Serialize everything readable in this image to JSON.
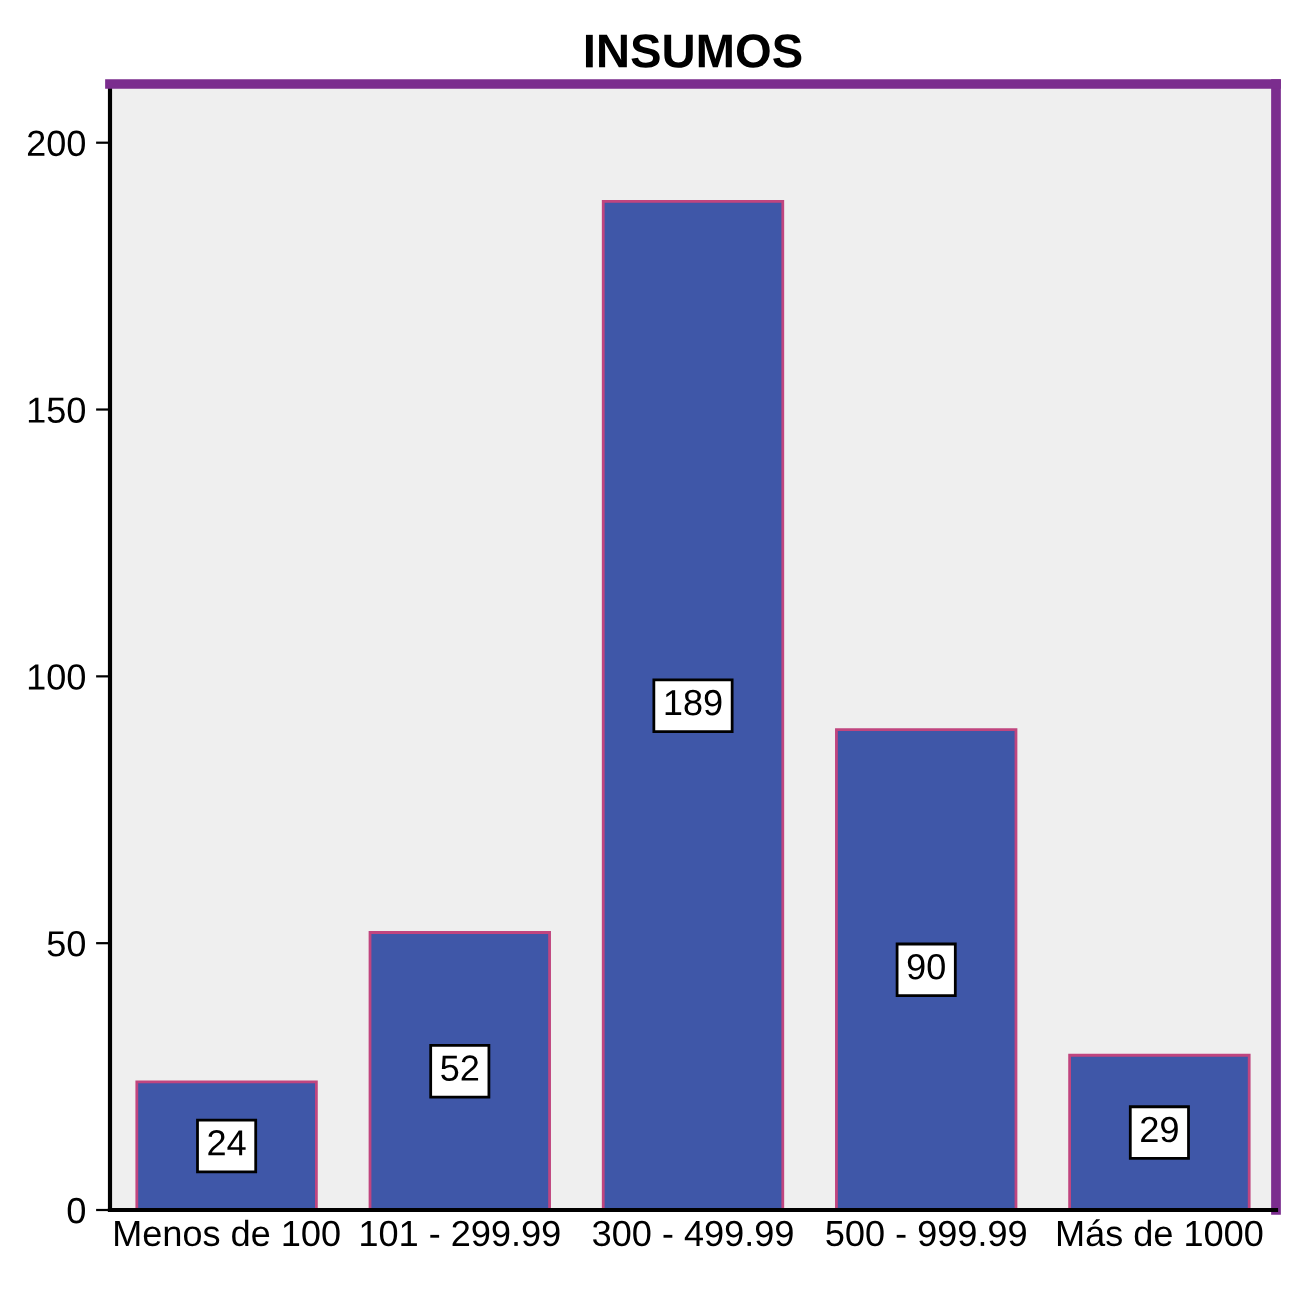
{
  "chart_data": {
    "type": "bar",
    "title": "INSUMOS",
    "categories": [
      "Menos de 100",
      "101 - 299.99",
      "300 - 499.99",
      "500 - 999.99",
      "Más de 1000"
    ],
    "values": [
      24,
      52,
      189,
      90,
      29
    ],
    "color": "#3f57a8",
    "ylim": [
      0,
      211
    ],
    "yticks": [
      0,
      50,
      100,
      150,
      200
    ],
    "grid": false,
    "data_labels": true
  }
}
